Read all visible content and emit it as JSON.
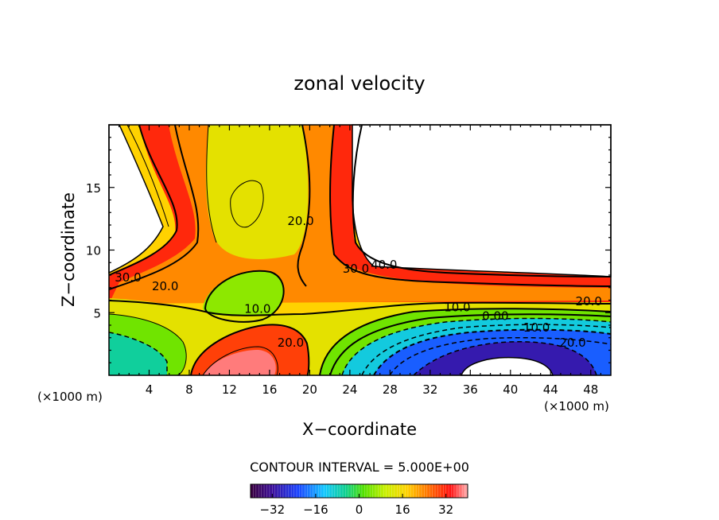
{
  "chart_data": {
    "type": "heatmap",
    "title": "zonal velocity",
    "xlabel": "X−coordinate",
    "ylabel": "Z−coordinate",
    "x_unit_left": "(×1000 m)",
    "x_unit_right": "(×1000 m)",
    "xlim": [
      0,
      50
    ],
    "ylim": [
      0,
      20
    ],
    "x_ticks": [
      4,
      8,
      12,
      16,
      20,
      24,
      28,
      32,
      36,
      40,
      44,
      48
    ],
    "y_ticks": [
      5,
      10,
      15
    ],
    "contour_interval_text": "CONTOUR INTERVAL = 5.000E+00",
    "colorbar": {
      "min": -40,
      "max": 40,
      "ticks": [
        -32,
        -16,
        0,
        16,
        32
      ],
      "tick_labels": [
        "−32",
        "−16",
        "0",
        "16",
        "32"
      ]
    },
    "contour_labels": [
      {
        "text": "30.0",
        "x": 1.9,
        "z": 7.5
      },
      {
        "text": "20.0",
        "x": 5.6,
        "z": 6.8
      },
      {
        "text": "10.0",
        "x": 14.8,
        "z": 5.0
      },
      {
        "text": "20.0",
        "x": 19.1,
        "z": 12.0
      },
      {
        "text": "40.0",
        "x": 27.4,
        "z": 8.5
      },
      {
        "text": "30.0",
        "x": 24.6,
        "z": 8.2
      },
      {
        "text": "20.0",
        "x": 18.1,
        "z": 2.3
      },
      {
        "text": "10.0",
        "x": 34.7,
        "z": 5.1
      },
      {
        "text": "20.0",
        "x": 47.8,
        "z": 5.6
      },
      {
        "text": "0.00",
        "x": 38.5,
        "z": 4.4
      },
      {
        "text": "10.0",
        "x": 42.6,
        "z": 3.5
      },
      {
        "text": "20.0",
        "x": 46.2,
        "z": 2.3
      }
    ]
  }
}
